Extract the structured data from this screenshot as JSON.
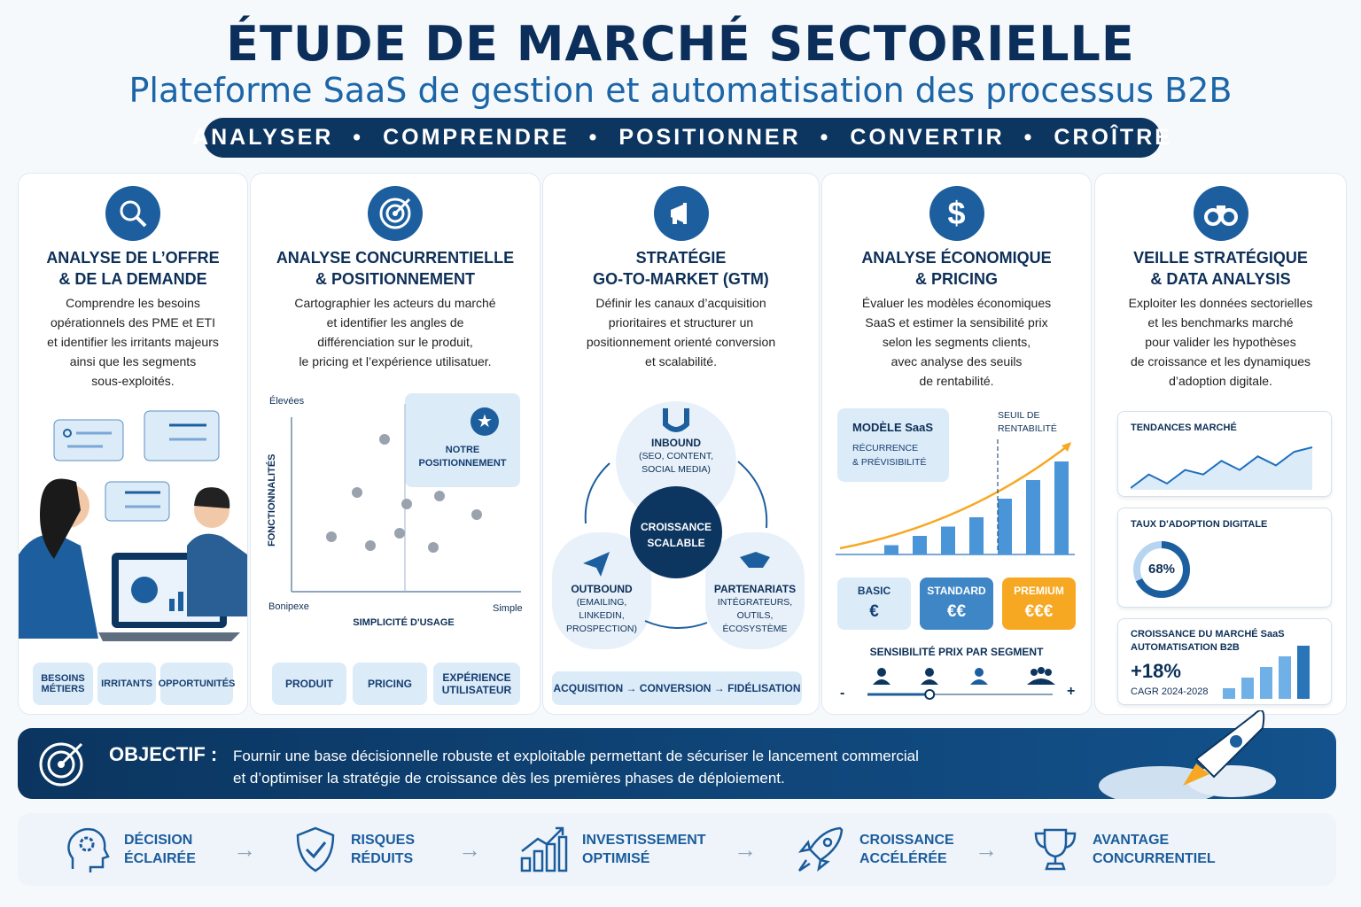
{
  "header": {
    "title": "ÉTUDE DE MARCHÉ SECTORIELLE",
    "subtitle": "Plateforme SaaS de gestion et automatisation des processus B2B",
    "steps": [
      "ANALYSER",
      "COMPRENDRE",
      "POSITIONNER",
      "CONVERTIR",
      "CROÎTRE"
    ]
  },
  "columns": [
    {
      "icon": "magnifier-icon",
      "title": [
        "ANALYSE DE L’OFFRE",
        "& DE LA DEMANDE"
      ],
      "desc": [
        "Comprendre les besoins",
        "opérationnels des PME et ETI",
        "et identifier les irritants majeurs",
        "ainsi que les segments",
        "sous-exploités."
      ],
      "tags": [
        [
          "BESOINS",
          "MÉTIERS"
        ],
        [
          "IRRITANTS"
        ],
        [
          "OPPORTUNITÉS"
        ]
      ]
    },
    {
      "icon": "target-icon",
      "title": [
        "ANALYSE CONCURRENTIELLE",
        "& POSITIONNEMENT"
      ],
      "desc": [
        "Cartographier les acteurs du marché",
        "et identifier les angles de",
        "différenciation sur le produit,",
        "le pricing et l’expérience utilisatuer."
      ],
      "map": {
        "y_top": "Élevées",
        "y_label": "FONCTIONNALITÉS",
        "x_left": "Bonipexe",
        "x_right": "Simple",
        "x_label": "SIMPLICITÉ D'USAGE",
        "highlight": [
          "NOTRE",
          "POSITIONNEMENT"
        ]
      },
      "tags": [
        [
          "PRODUIT"
        ],
        [
          "PRICING"
        ],
        [
          "EXPÉRIENCE",
          "UTILISATEUR"
        ]
      ]
    },
    {
      "icon": "megaphone-icon",
      "title": [
        "STRATÉGIE",
        "GO-TO-MARKET (GTM)"
      ],
      "desc": [
        "Définir les canaux d’acquisition",
        "prioritaires et structurer un",
        "positionnement orienté conversion",
        "et scalabilité."
      ],
      "cycle": {
        "center": [
          "CROISSANCE",
          "SCALABLE"
        ],
        "inbound": {
          "title": "INBOUND",
          "sub": [
            "(SEO, CONTENT,",
            "SOCIAL MEDIA)"
          ]
        },
        "outbound": {
          "title": "OUTBOUND",
          "sub": [
            "(EMAILING,",
            "LINKEDIN,",
            "PROSPECTION)"
          ]
        },
        "partners": {
          "title": "PARTENARIATS",
          "sub": [
            "INTÉGRATEURS,",
            "OUTILS,",
            "ÉCOSYSTÈME"
          ]
        }
      },
      "funnel": "ACQUISITION → CONVERSION → FIDÉLISATION"
    },
    {
      "icon": "dollar-icon",
      "title": [
        "ANALYSE ÉCONOMIQUE",
        "& PRICING"
      ],
      "desc": [
        "Évaluer les modèles économiques",
        "SaaS et estimer la sensibilité prix",
        "selon les segments clients,",
        "avec analyse des seuils",
        "de rentabilité."
      ],
      "model": {
        "title": "MODÈLE SaaS",
        "sub": [
          "RÉCURRENCE",
          "& PRÉVISIBILITÉ"
        ]
      },
      "threshold": [
        "SEUIL DE",
        "RENTABILITÉ"
      ],
      "bars": [
        1,
        2,
        3,
        4,
        6,
        8,
        10
      ],
      "plans": [
        {
          "name": "BASIC",
          "price": "€",
          "color": "#dcebf8"
        },
        {
          "name": "STANDARD",
          "price": "€€",
          "color": "#3f86c6"
        },
        {
          "name": "PREMIUM",
          "price": "€€€",
          "color": "#f7a823"
        }
      ],
      "sensitivity": {
        "label": "SENSIBILITÉ PRIX PAR SEGMENT",
        "minus": "-",
        "plus": "+",
        "level": 0.35
      }
    },
    {
      "icon": "binoculars-icon",
      "title": [
        "VEILLE STRATÉGIQUE",
        "& DATA ANALYSIS"
      ],
      "desc": [
        "Exploiter les données sectorielles",
        "et les benchmarks marché",
        "pour valider les hypothèses",
        "de croissance et les dynamiques",
        "d’adoption digitale."
      ],
      "trend": {
        "title": "TENDANCES MARCHÉ",
        "values": [
          0,
          3,
          1,
          4,
          3,
          6,
          4,
          7,
          5,
          8,
          9
        ]
      },
      "adoption": {
        "title": "TAUX D'ADOPTION DIGITALE",
        "value": "68%",
        "fraction": 0.68
      },
      "growth": {
        "title": [
          "CROISSANCE DU MARCHÉ SaaS",
          "AUTOMATISATION B2B"
        ],
        "value": "+18%",
        "sub": "CAGR 2024-2028",
        "bars": [
          1,
          2,
          3,
          4,
          5
        ]
      }
    }
  ],
  "objective": {
    "label": "OBJECTIF :",
    "text": [
      "Fournir une base décisionnelle robuste et exploitable permettant de sécuriser le lancement commercial",
      "et d’optimiser la stratégie de croissance dès les premières phases de déploiement."
    ]
  },
  "benefits": [
    {
      "icon": "head-gear-icon",
      "label": [
        "DÉCISION",
        "ÉCLAIRÉE"
      ]
    },
    {
      "icon": "shield-check-icon",
      "label": [
        "RISQUES",
        "RÉDUITS"
      ]
    },
    {
      "icon": "growth-chart-icon",
      "label": [
        "INVESTISSEMENT",
        "OPTIMISÉ"
      ]
    },
    {
      "icon": "rocket-icon",
      "label": [
        "CROISSANCE",
        "ACCÉLÉRÉE"
      ]
    },
    {
      "icon": "trophy-icon",
      "label": [
        "AVANTAGE",
        "CONCURRENTIEL"
      ]
    }
  ],
  "colors": {
    "navy": "#0c3560",
    "blue": "#1d5f9e",
    "light": "#dcebf8",
    "orange": "#f7a823"
  }
}
